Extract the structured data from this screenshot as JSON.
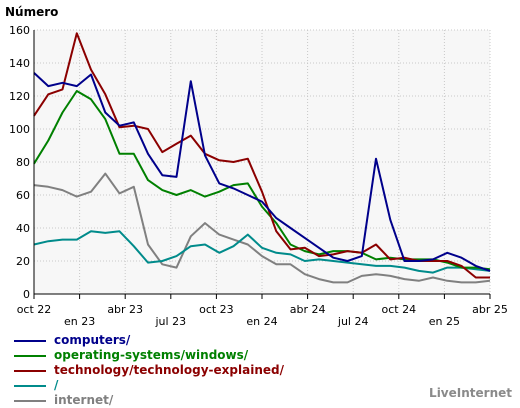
{
  "chart_data": {
    "type": "line",
    "ylabel": "Número",
    "ylim": [
      0,
      160
    ],
    "yticks": [
      0,
      20,
      40,
      60,
      80,
      100,
      120,
      140,
      160
    ],
    "grid": true,
    "legend_position": "bottom",
    "x_tick_labels": [
      "oct 22",
      "en 23",
      "abr 23",
      "jul 23",
      "oct 23",
      "en 24",
      "abr 24",
      "jul 24",
      "oct 24",
      "en 25",
      "abr 25"
    ],
    "series": [
      {
        "name": "computers/",
        "color": "#00008b",
        "values": [
          134,
          126,
          128,
          126,
          133,
          110,
          102,
          104,
          85,
          72,
          71,
          129,
          84,
          67,
          64,
          60,
          56,
          46,
          40,
          34,
          28,
          22,
          20,
          23,
          82,
          45,
          20,
          20,
          21,
          25,
          22,
          17,
          14
        ]
      },
      {
        "name": "operating-systems/windows/",
        "color": "#008000",
        "values": [
          79,
          93,
          110,
          123,
          118,
          106,
          85,
          85,
          69,
          63,
          60,
          63,
          59,
          62,
          66,
          67,
          53,
          43,
          30,
          26,
          24,
          26,
          26,
          25,
          21,
          22,
          21,
          21,
          21,
          19,
          16,
          16,
          15
        ]
      },
      {
        "name": "technology/technology-explained/",
        "color": "#8b0000",
        "values": [
          108,
          121,
          124,
          158,
          136,
          121,
          101,
          102,
          100,
          86,
          91,
          96,
          85,
          81,
          80,
          82,
          62,
          38,
          27,
          28,
          23,
          24,
          26,
          25,
          30,
          21,
          22,
          20,
          20,
          20,
          17,
          10,
          10
        ]
      },
      {
        "name": "/",
        "color": "#008b8b",
        "values": [
          30,
          32,
          33,
          33,
          38,
          37,
          38,
          29,
          19,
          20,
          23,
          29,
          30,
          25,
          29,
          36,
          28,
          25,
          24,
          20,
          21,
          20,
          19,
          18,
          17,
          17,
          16,
          14,
          13,
          16,
          16,
          15,
          14
        ]
      },
      {
        "name": "internet/",
        "color": "#808080",
        "values": [
          66,
          65,
          63,
          59,
          62,
          73,
          61,
          65,
          30,
          18,
          16,
          35,
          43,
          36,
          33,
          30,
          23,
          18,
          18,
          12,
          9,
          7,
          7,
          11,
          12,
          11,
          9,
          8,
          10,
          8,
          7,
          7,
          8
        ]
      }
    ]
  },
  "branding": {
    "text": "LiveInternet"
  }
}
